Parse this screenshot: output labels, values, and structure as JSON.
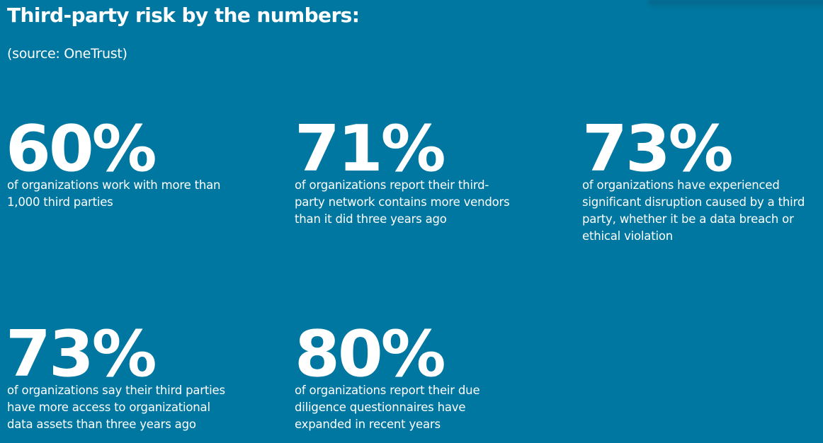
{
  "header": {
    "title": "Third-party risk by the numbers:",
    "source": "(source: OneTrust)"
  },
  "colors": {
    "background": "#0077a0",
    "text": "#ffffff"
  },
  "stats": [
    {
      "value": "60%",
      "lines": [
        "of organizations work with more than",
        "1,000 third parties"
      ]
    },
    {
      "value": "71%",
      "lines": [
        "of organizations report their third-",
        "party network contains more vendors",
        "than it did three years ago"
      ]
    },
    {
      "value": "73%",
      "lines": [
        "of organizations have experienced",
        "significant disruption caused by a third",
        "party, whether it be a data breach or",
        "ethical violation"
      ]
    },
    {
      "value": "73%",
      "lines": [
        "of organizations say their third parties",
        "have more access to organizational",
        "data assets than three years ago"
      ]
    },
    {
      "value": "80%",
      "lines": [
        "of organizations report their due",
        "diligence questionnaires have",
        "expanded in recent years"
      ]
    }
  ]
}
